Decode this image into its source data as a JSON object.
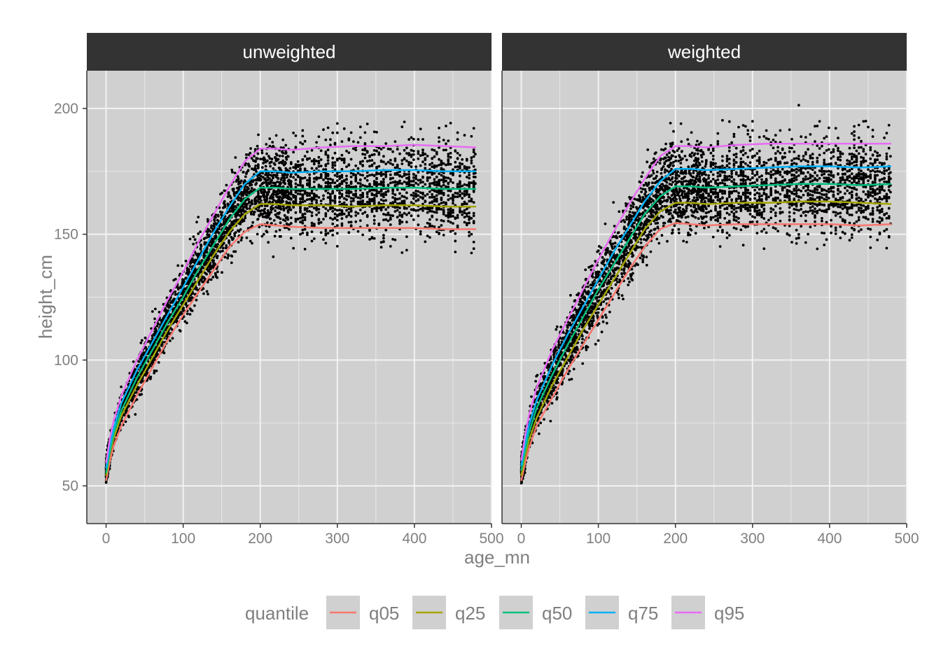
{
  "chart_data": {
    "type": "scatter",
    "xlabel": "age_mn",
    "ylabel": "height_cm",
    "xlim": [
      -25,
      500
    ],
    "ylim": [
      35,
      215
    ],
    "x_ticks": [
      0,
      100,
      200,
      300,
      400,
      500
    ],
    "y_ticks": [
      50,
      100,
      150,
      200
    ],
    "x_tick_labels": [
      "0",
      "100",
      "200",
      "300",
      "400",
      "500"
    ],
    "y_tick_labels": [
      "50",
      "100",
      "150",
      "200"
    ],
    "grid": true,
    "legend": {
      "title": "quantile",
      "position": "bottom",
      "entries": [
        {
          "label": "q05",
          "color": "#F8766D"
        },
        {
          "label": "q25",
          "color": "#A3A500"
        },
        {
          "label": "q50",
          "color": "#00BF7D"
        },
        {
          "label": "q75",
          "color": "#00B0F6"
        },
        {
          "label": "q95",
          "color": "#E76BF3"
        }
      ]
    },
    "panels": [
      {
        "title": "unweighted",
        "series": [
          {
            "name": "q05",
            "color": "#F8766D",
            "x": [
              0,
              5,
              10,
              20,
              40,
              60,
              80,
              100,
              120,
              140,
              160,
              180,
              200,
              220,
              240,
              280,
              320,
              360,
              400,
              440,
              480
            ],
            "y": [
              52,
              60,
              66,
              74,
              86,
              97,
              108,
              118,
              127,
              136,
              145,
              151,
              154,
              153.5,
              153,
              152.5,
              152.5,
              152.5,
              152.5,
              152,
              152
            ]
          },
          {
            "name": "q25",
            "color": "#A3A500",
            "x": [
              0,
              5,
              10,
              20,
              40,
              60,
              80,
              100,
              120,
              140,
              160,
              180,
              200,
              220,
              240,
              280,
              320,
              360,
              400,
              440,
              480
            ],
            "y": [
              54,
              63,
              69,
              78,
              90,
              101,
              112,
              122,
              132,
              142,
              151,
              158,
              162,
              162,
              161.5,
              161.5,
              161,
              161.5,
              161.5,
              161,
              161
            ]
          },
          {
            "name": "q50",
            "color": "#00BF7D",
            "x": [
              0,
              5,
              10,
              20,
              40,
              60,
              80,
              100,
              120,
              140,
              160,
              180,
              200,
              220,
              240,
              280,
              320,
              360,
              400,
              440,
              480
            ],
            "y": [
              55,
              64,
              71,
              80,
              93,
              104,
              115,
              125,
              136,
              146,
              156,
              164,
              168.5,
              168.5,
              168,
              168,
              168,
              168.5,
              168.5,
              168,
              168
            ]
          },
          {
            "name": "q75",
            "color": "#00B0F6",
            "x": [
              0,
              5,
              10,
              20,
              40,
              60,
              80,
              100,
              120,
              140,
              160,
              180,
              200,
              220,
              240,
              280,
              320,
              360,
              400,
              440,
              480
            ],
            "y": [
              57,
              66,
              73,
              83,
              96,
              107,
              118,
              129,
              140,
              151,
              161,
              170,
              175,
              175,
              174.5,
              175,
              175,
              175.5,
              175.5,
              175,
              175
            ]
          },
          {
            "name": "q95",
            "color": "#E76BF3",
            "x": [
              0,
              5,
              10,
              20,
              40,
              60,
              80,
              100,
              120,
              140,
              160,
              180,
              200,
              220,
              240,
              280,
              320,
              360,
              400,
              440,
              480
            ],
            "y": [
              59,
              69,
              76,
              86,
              100,
              112,
              124,
              135,
              147,
              158,
              169,
              179,
              184,
              184,
              183.5,
              184.5,
              185,
              185,
              185.5,
              185,
              184.5
            ]
          }
        ]
      },
      {
        "title": "weighted",
        "series": [
          {
            "name": "q05",
            "color": "#F8766D",
            "x": [
              0,
              5,
              10,
              20,
              40,
              60,
              80,
              100,
              120,
              140,
              160,
              180,
              200,
              220,
              240,
              280,
              320,
              360,
              400,
              440,
              480
            ],
            "y": [
              52,
              59,
              65,
              74,
              85,
              96,
              106,
              116,
              126,
              136,
              145,
              152,
              154.5,
              154,
              153.5,
              154,
              154,
              154,
              154,
              153.5,
              154
            ]
          },
          {
            "name": "q25",
            "color": "#A3A500",
            "x": [
              0,
              5,
              10,
              20,
              40,
              60,
              80,
              100,
              120,
              140,
              160,
              180,
              200,
              220,
              240,
              280,
              320,
              360,
              400,
              440,
              480
            ],
            "y": [
              54,
              62,
              68,
              77,
              90,
              101,
              112,
              122,
              132,
              142,
              152,
              159,
              162.5,
              162.5,
              162,
              162.5,
              162.5,
              163,
              163,
              162.5,
              162
            ]
          },
          {
            "name": "q50",
            "color": "#00BF7D",
            "x": [
              0,
              5,
              10,
              20,
              40,
              60,
              80,
              100,
              120,
              140,
              160,
              180,
              200,
              220,
              240,
              280,
              320,
              360,
              400,
              440,
              480
            ],
            "y": [
              56,
              64,
              71,
              81,
              94,
              106,
              117,
              128,
              138,
              148,
              158,
              165,
              169,
              169,
              168.5,
              169,
              169.5,
              170,
              170,
              169.5,
              170
            ]
          },
          {
            "name": "q75",
            "color": "#00B0F6",
            "x": [
              0,
              5,
              10,
              20,
              40,
              60,
              80,
              100,
              120,
              140,
              160,
              180,
              200,
              220,
              240,
              280,
              320,
              360,
              400,
              440,
              480
            ],
            "y": [
              58,
              67,
              74,
              84,
              98,
              110,
              121,
              132,
              143,
              153,
              163,
              171,
              176,
              176,
              175.5,
              176,
              176.5,
              177,
              177,
              176.5,
              177
            ]
          },
          {
            "name": "q95",
            "color": "#E76BF3",
            "x": [
              0,
              5,
              10,
              20,
              40,
              60,
              80,
              100,
              120,
              140,
              160,
              180,
              200,
              220,
              240,
              280,
              320,
              360,
              400,
              440,
              480
            ],
            "y": [
              60,
              70,
              78,
              89,
              104,
              116,
              128,
              140,
              151,
              162,
              172,
              181,
              185,
              185,
              184.5,
              185.5,
              186,
              186,
              186,
              186,
              186
            ]
          }
        ]
      }
    ]
  }
}
